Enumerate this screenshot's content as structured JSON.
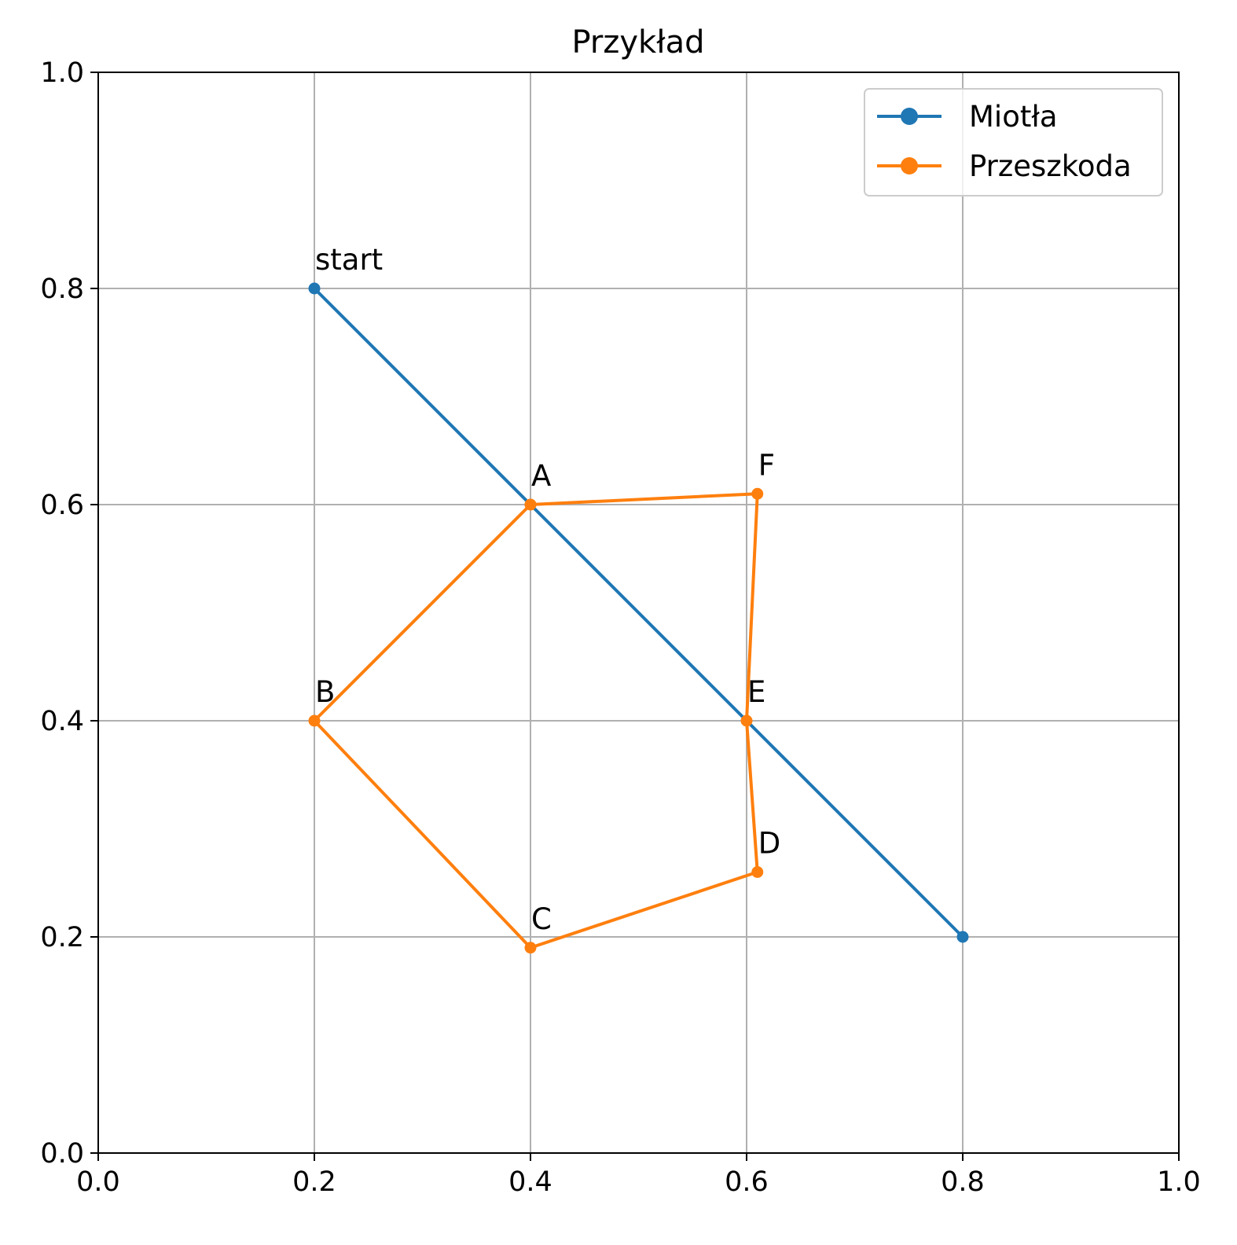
{
  "chart_data": {
    "type": "line",
    "title": "Przykład",
    "xlabel": "",
    "ylabel": "",
    "xlim": [
      0.0,
      1.0
    ],
    "ylim": [
      0.0,
      1.0
    ],
    "xticks": [
      "0.0",
      "0.2",
      "0.4",
      "0.6",
      "0.8",
      "1.0"
    ],
    "yticks": [
      "0.0",
      "0.2",
      "0.4",
      "0.6",
      "0.8",
      "1.0"
    ],
    "grid": true,
    "legend_position": "top-right",
    "series": [
      {
        "name": "Miotła",
        "color": "#1f77b4",
        "points": [
          [
            0.2,
            0.8
          ],
          [
            0.8,
            0.2
          ]
        ]
      },
      {
        "name": "Przeszkoda",
        "color": "#ff7f0e",
        "points": [
          [
            0.4,
            0.6
          ],
          [
            0.61,
            0.61
          ],
          [
            0.6,
            0.4
          ],
          [
            0.61,
            0.26
          ],
          [
            0.4,
            0.19
          ],
          [
            0.2,
            0.4
          ],
          [
            0.4,
            0.6
          ]
        ]
      }
    ],
    "annotations": [
      {
        "text": "start",
        "x": 0.2,
        "y": 0.8
      },
      {
        "text": "A",
        "x": 0.4,
        "y": 0.6
      },
      {
        "text": "B",
        "x": 0.2,
        "y": 0.4
      },
      {
        "text": "C",
        "x": 0.4,
        "y": 0.19
      },
      {
        "text": "D",
        "x": 0.61,
        "y": 0.26
      },
      {
        "text": "E",
        "x": 0.6,
        "y": 0.4
      },
      {
        "text": "F",
        "x": 0.61,
        "y": 0.61
      }
    ]
  }
}
